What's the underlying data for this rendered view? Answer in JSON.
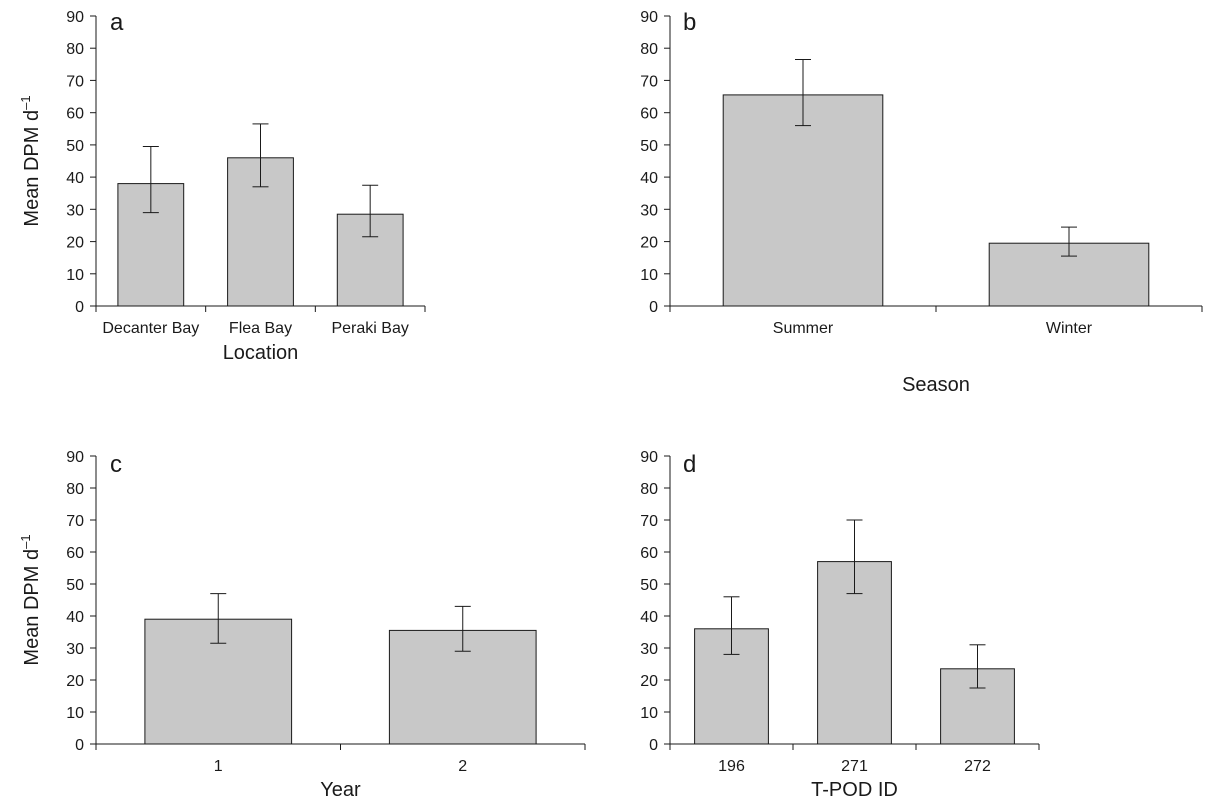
{
  "chart_data": [
    {
      "type": "bar",
      "panel_label": "a",
      "title": "",
      "xlabel": "Location",
      "ylabel": "Mean DPM d",
      "ylabel_superscript": "–1",
      "ylim": [
        0,
        90
      ],
      "yticks": [
        0,
        10,
        20,
        30,
        40,
        50,
        60,
        70,
        80,
        90
      ],
      "grid": false,
      "categories": [
        "Decanter Bay",
        "Flea Bay",
        "Peraki Bay"
      ],
      "values": [
        38,
        46,
        28.5
      ],
      "error_low": [
        29,
        37,
        21.5
      ],
      "error_high": [
        49.5,
        56.5,
        37.5
      ],
      "bar_color": "#c8c8c8"
    },
    {
      "type": "bar",
      "panel_label": "b",
      "title": "",
      "xlabel": "Season",
      "ylabel": "",
      "ylim": [
        0,
        90
      ],
      "yticks": [
        0,
        10,
        20,
        30,
        40,
        50,
        60,
        70,
        80,
        90
      ],
      "grid": false,
      "categories": [
        "Summer",
        "Winter"
      ],
      "values": [
        65.5,
        19.5
      ],
      "error_low": [
        56,
        15.5
      ],
      "error_high": [
        76.5,
        24.5
      ],
      "bar_color": "#c8c8c8"
    },
    {
      "type": "bar",
      "panel_label": "c",
      "title": "",
      "xlabel": "Year",
      "ylabel": "Mean DPM d",
      "ylabel_superscript": "–1",
      "ylim": [
        0,
        90
      ],
      "yticks": [
        0,
        10,
        20,
        30,
        40,
        50,
        60,
        70,
        80,
        90
      ],
      "grid": false,
      "categories": [
        "1",
        "2"
      ],
      "values": [
        39,
        35.5
      ],
      "error_low": [
        31.5,
        29
      ],
      "error_high": [
        47,
        43
      ],
      "bar_color": "#c8c8c8"
    },
    {
      "type": "bar",
      "panel_label": "d",
      "title": "",
      "xlabel": "T-POD ID",
      "ylabel": "",
      "ylim": [
        0,
        90
      ],
      "yticks": [
        0,
        10,
        20,
        30,
        40,
        50,
        60,
        70,
        80,
        90
      ],
      "grid": false,
      "categories": [
        "196",
        "271",
        "272"
      ],
      "values": [
        36,
        57,
        23.5
      ],
      "error_low": [
        28,
        47,
        17.5
      ],
      "error_high": [
        46,
        70,
        31
      ],
      "bar_color": "#c8c8c8"
    }
  ]
}
